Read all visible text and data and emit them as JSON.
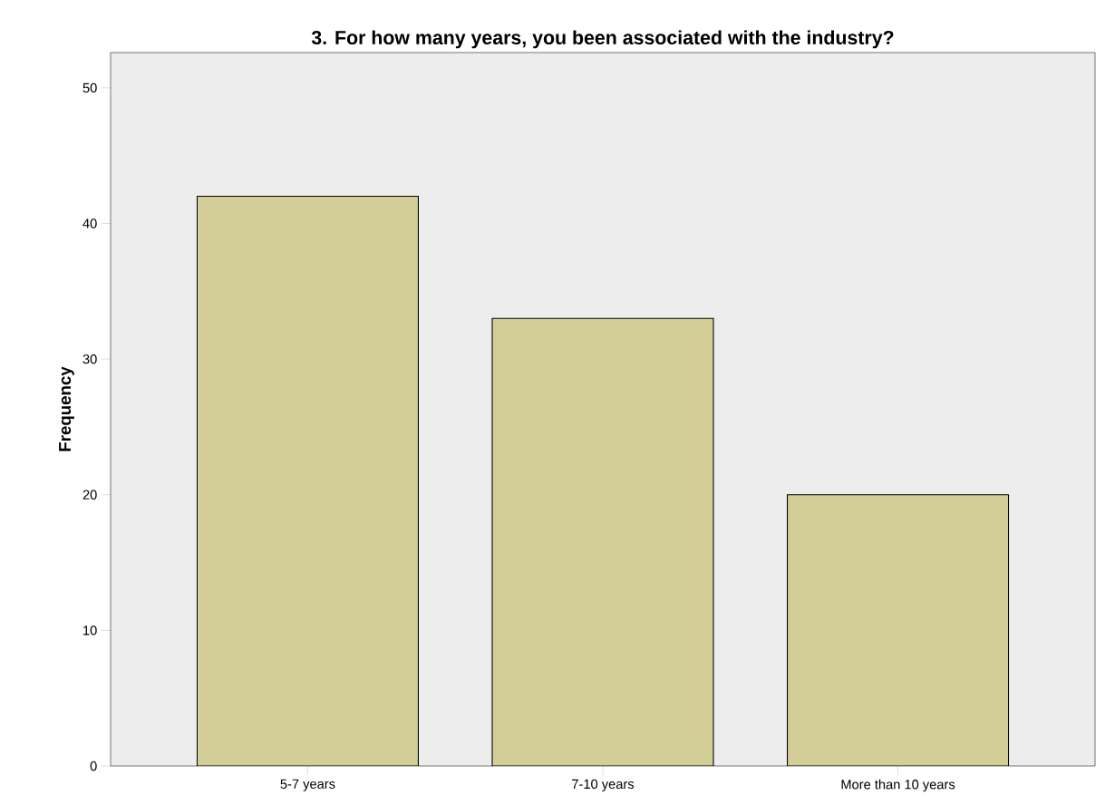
{
  "chart_data": {
    "type": "bar",
    "title": "3. For how many years, you been associated with the industry?",
    "ylabel": "Frequency",
    "categories": [
      "5-7 years",
      "7-10 years",
      "More than 10 years"
    ],
    "values": [
      42,
      33,
      20
    ],
    "color": "#d3ce97",
    "ylim": [
      0,
      52.6
    ],
    "yticks": [
      0,
      10,
      20,
      30,
      40,
      50
    ]
  }
}
